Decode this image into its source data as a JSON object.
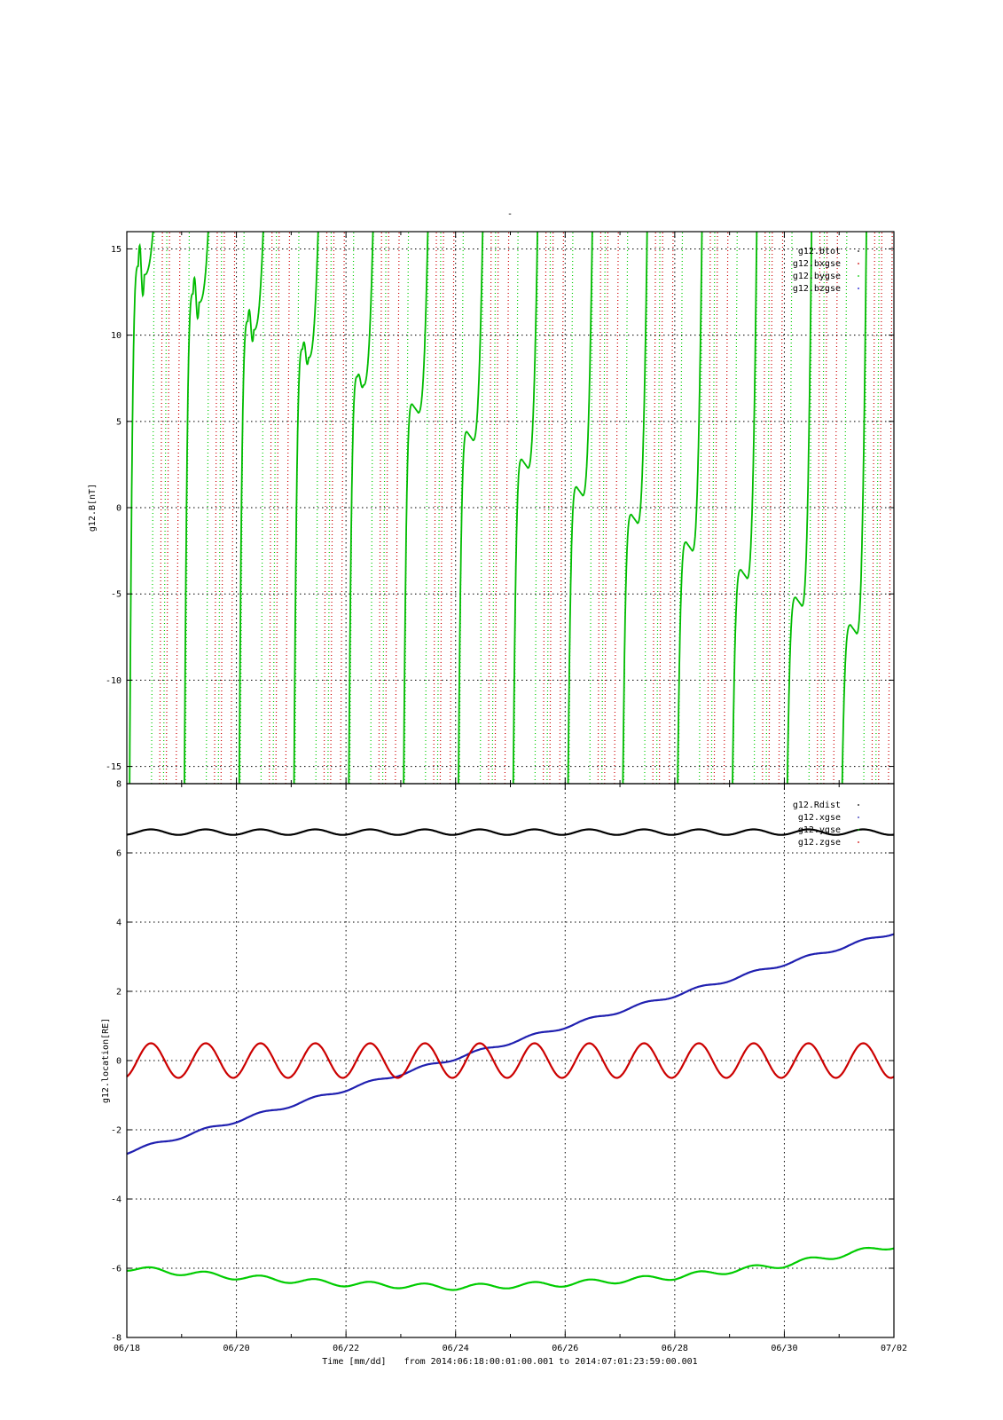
{
  "figure": {
    "title": "-",
    "xlabel_prefix": "Time [mm/dd]",
    "range_text": "from 2014:06:18:00:01:00.001  to  2014:07:01:23:59:00.001",
    "x_tick_labels": [
      "06/18",
      "06/20",
      "06/22",
      "06/24",
      "06/26",
      "06/28",
      "06/30",
      "07/02"
    ]
  },
  "chart_data": [
    {
      "type": "line",
      "ylabel": "g12.B[nT]",
      "xlim_days": [
        0,
        14
      ],
      "ylim": [
        -16,
        16
      ],
      "y_ticks": [
        -15,
        -10,
        -5,
        0,
        5,
        10,
        15
      ],
      "y_tick_labels": [
        "-15",
        "-10",
        "-5",
        "0",
        "5",
        "10",
        "15"
      ],
      "grid": true,
      "legend_position": "top-right",
      "x_tick_labels": [
        "06/18",
        "06/20",
        "06/22",
        "06/24",
        "06/26",
        "06/28",
        "06/30",
        "07/02"
      ],
      "series": [
        {
          "name": "g12.btot",
          "color": "#000000",
          "marker": "solid"
        },
        {
          "name": "g12.bxgse",
          "color": "#cc0000",
          "marker": "dotted"
        },
        {
          "name": "g12.bygse",
          "color": "#00cc00",
          "marker": "dotted"
        },
        {
          "name": "g12.bzgse",
          "color": "#0000cc",
          "marker": "dotted"
        }
      ],
      "steep_crossings": {
        "solid_green_period_days": 1.0,
        "first_solid_green_crossing_day": 0.05,
        "dotted_red_first_crossing_day": 0.6,
        "dotted_green_first_crossing_day": 0.45,
        "wrap_range": [
          -16,
          16
        ]
      }
    },
    {
      "type": "line",
      "ylabel": "g12.location[RE]",
      "xlim_days": [
        0,
        14
      ],
      "ylim": [
        -8,
        8
      ],
      "y_ticks": [
        -8,
        -6,
        -4,
        -2,
        0,
        2,
        4,
        6,
        8
      ],
      "y_tick_labels": [
        "-8",
        "-6",
        "-4",
        "-2",
        "0",
        "2",
        "4",
        "6",
        "8"
      ],
      "grid": true,
      "legend_position": "top-right",
      "x_tick_labels": [
        "06/18",
        "06/20",
        "06/22",
        "06/24",
        "06/26",
        "06/28",
        "06/30",
        "07/02"
      ],
      "series": [
        {
          "name": "g12.Rdist",
          "color": "#000000",
          "mean": 6.6,
          "amplitude": 0.08,
          "period_days": 1.0,
          "trend_per_day": 0.0
        },
        {
          "name": "g12.xgse",
          "color": "#2020b0",
          "start": -2.65,
          "end": 3.7,
          "amplitude": 0.05,
          "period_days": 1.0
        },
        {
          "name": "g12.ygse",
          "color": "#00cc00",
          "points_days": [
            0,
            2,
            4,
            6,
            8,
            10,
            12,
            14
          ],
          "points_values": [
            -6.0,
            -6.25,
            -6.45,
            -6.55,
            -6.45,
            -6.25,
            -5.9,
            -5.35
          ],
          "amplitude": 0.08,
          "period_days": 1.0
        },
        {
          "name": "g12.zgse",
          "color": "#cc0000",
          "mean": 0.0,
          "amplitude": 0.5,
          "period_days": 1.0
        }
      ]
    }
  ]
}
